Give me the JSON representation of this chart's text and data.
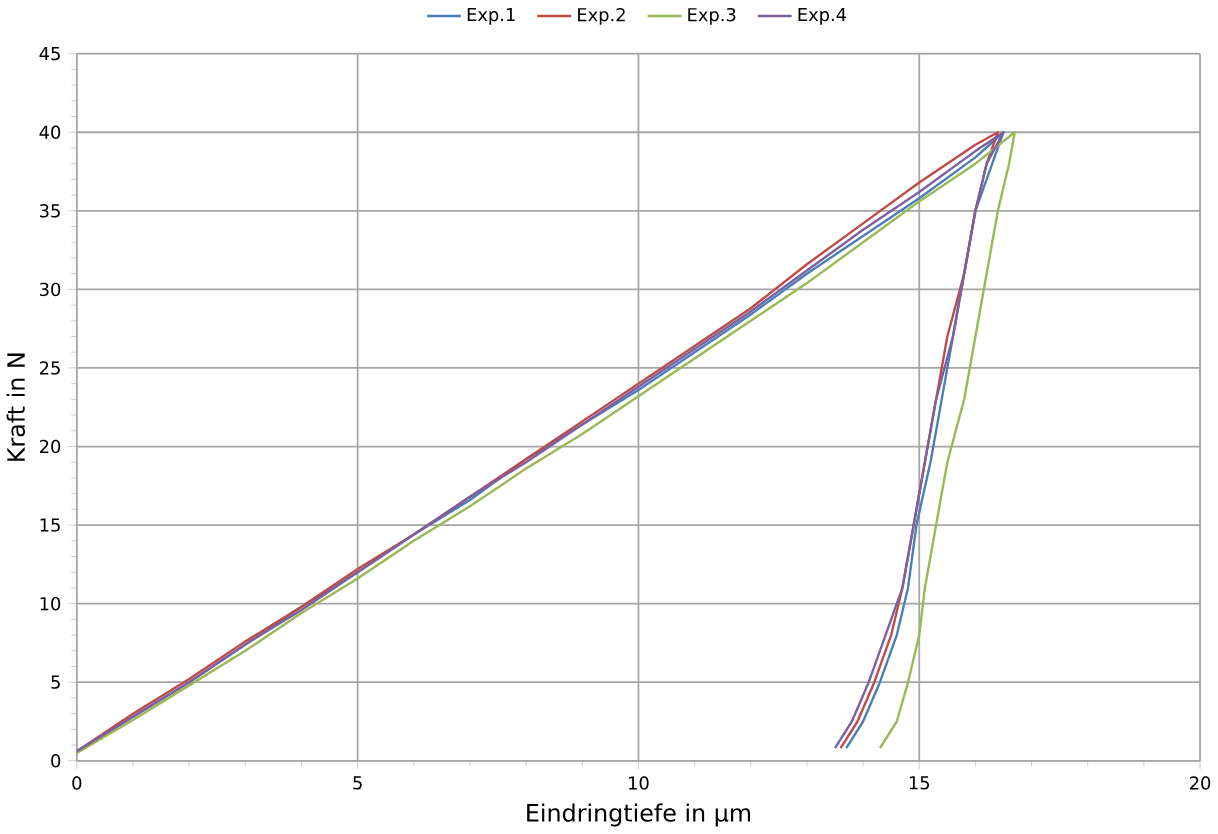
{
  "chart_data": {
    "type": "line",
    "xlabel": "Eindringtiefe in µm",
    "ylabel": "Kraft in N",
    "xlim": [
      0,
      20
    ],
    "ylim": [
      0,
      45
    ],
    "xticks": [
      0,
      5,
      10,
      15,
      20
    ],
    "yticks": [
      0,
      5,
      10,
      15,
      20,
      25,
      30,
      35,
      40,
      45
    ],
    "grid": true,
    "legend": "top",
    "marker": "none",
    "line_style": "solid",
    "series": [
      {
        "name": "Exp.1",
        "color": "#4a7ebb",
        "x": [
          0,
          1,
          2,
          3,
          4,
          5,
          6,
          7,
          8,
          9,
          10,
          11,
          12,
          13,
          14,
          15,
          16,
          16.5,
          16.3,
          16.0,
          15.8,
          15.6,
          15.4,
          15.2,
          14.95,
          14.8,
          14.6,
          14.3,
          14.0,
          13.7
        ],
        "values": [
          0.6,
          2.8,
          5.0,
          7.4,
          9.8,
          12.0,
          14.4,
          16.6,
          19.2,
          21.4,
          23.6,
          26.0,
          28.4,
          31.0,
          33.4,
          35.8,
          38.4,
          40,
          38,
          35,
          31,
          27,
          23,
          19,
          15,
          11,
          8,
          5,
          2.5,
          0.8
        ]
      },
      {
        "name": "Exp.2",
        "color": "#be4b48",
        "x": [
          0,
          1,
          2,
          3,
          4,
          5,
          6,
          7,
          8,
          9,
          10,
          11,
          12,
          13,
          14,
          15,
          16,
          16.4,
          16.2,
          16.0,
          15.8,
          15.5,
          15.3,
          15.1,
          14.9,
          14.7,
          14.5,
          14.2,
          13.9,
          13.6
        ],
        "values": [
          0.6,
          3.0,
          5.2,
          7.6,
          9.8,
          12.2,
          14.4,
          16.8,
          19.2,
          21.6,
          24.0,
          26.4,
          28.8,
          31.6,
          34.2,
          36.8,
          39.2,
          40,
          38,
          35,
          31,
          27,
          23,
          19,
          15,
          11,
          8,
          5,
          2.5,
          0.8
        ]
      },
      {
        "name": "Exp.3",
        "color": "#98b954",
        "x": [
          0,
          1,
          2,
          3,
          4,
          5,
          6,
          7,
          8,
          9,
          10,
          11,
          12,
          13,
          14,
          15,
          16,
          16.7,
          16.6,
          16.4,
          16.2,
          16.0,
          15.8,
          15.5,
          15.3,
          15.1,
          15.0,
          14.8,
          14.6,
          14.3
        ],
        "values": [
          0.5,
          2.6,
          4.8,
          7.0,
          9.4,
          11.6,
          14.0,
          16.2,
          18.6,
          20.8,
          23.2,
          25.6,
          28.0,
          30.4,
          33.0,
          35.6,
          38.0,
          40,
          38,
          35,
          31,
          27,
          23,
          19,
          15,
          11,
          8,
          5,
          2.5,
          0.8
        ]
      },
      {
        "name": "Exp.4",
        "color": "#7d60a0",
        "x": [
          0,
          1,
          2,
          3,
          4,
          5,
          6,
          7,
          8,
          9,
          10,
          11,
          12,
          13,
          14,
          15,
          16,
          16.5,
          16.2,
          16.0,
          15.8,
          15.6,
          15.3,
          15.1,
          14.9,
          14.7,
          14.4,
          14.1,
          13.8,
          13.5
        ],
        "values": [
          0.6,
          2.8,
          5.0,
          7.4,
          9.6,
          12.0,
          14.4,
          16.8,
          19.0,
          21.4,
          23.8,
          26.2,
          28.6,
          31.2,
          33.8,
          36.2,
          38.8,
          40,
          38,
          35,
          31,
          27,
          23,
          19,
          15,
          11,
          8,
          5,
          2.5,
          0.8
        ]
      }
    ]
  }
}
